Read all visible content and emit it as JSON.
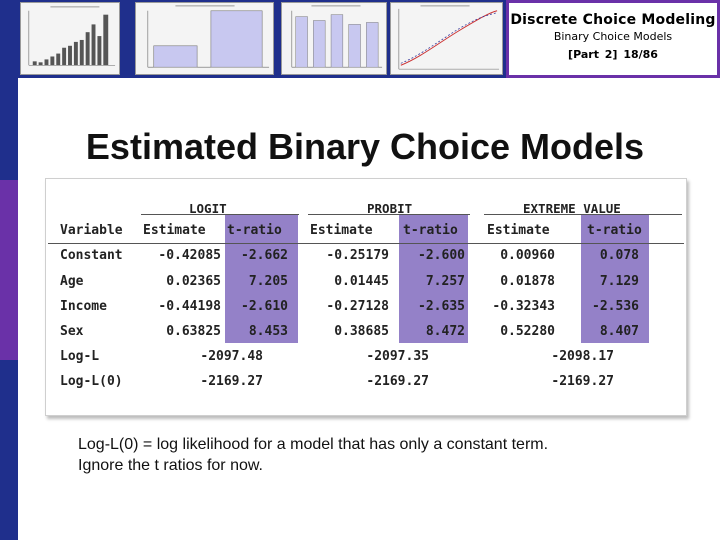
{
  "header": {
    "course_title": "Discrete Choice Modeling",
    "topic": "Binary Choice Models",
    "part_label": "[Part 2]",
    "page_label": "18/86"
  },
  "slide_title": "Estimated Binary Choice Models",
  "table": {
    "groups": [
      "LOGIT",
      "PROBIT",
      "EXTREME VALUE"
    ],
    "columns": [
      "Variable",
      "Estimate",
      "t-ratio",
      "Estimate",
      "t-ratio",
      "Estimate",
      "t-ratio"
    ],
    "rows": [
      {
        "label": "Constant",
        "values": [
          "-0.42085",
          "-2.662",
          "-0.25179",
          "-2.600",
          "0.00960",
          "0.078"
        ]
      },
      {
        "label": "Age",
        "values": [
          "0.02365",
          "7.205",
          "0.01445",
          "7.257",
          "0.01878",
          "7.129"
        ]
      },
      {
        "label": "Income",
        "values": [
          "-0.44198",
          "-2.610",
          "-0.27128",
          "-2.635",
          "-0.32343",
          "-2.536"
        ]
      },
      {
        "label": "Sex",
        "values": [
          "0.63825",
          "8.453",
          "0.38685",
          "8.472",
          "0.52280",
          "8.407"
        ]
      }
    ],
    "loglik_rows": [
      {
        "label": "Log-L",
        "values": [
          "-2097.48",
          "-2097.35",
          "-2098.17"
        ]
      },
      {
        "label": "Log-L(0)",
        "values": [
          "-2169.27",
          "-2169.27",
          "-2169.27"
        ]
      }
    ]
  },
  "note": {
    "line1": "Log-L(0) = log likelihood for a model that has only a constant term.",
    "line2": "Ignore the t ratios for now."
  }
}
